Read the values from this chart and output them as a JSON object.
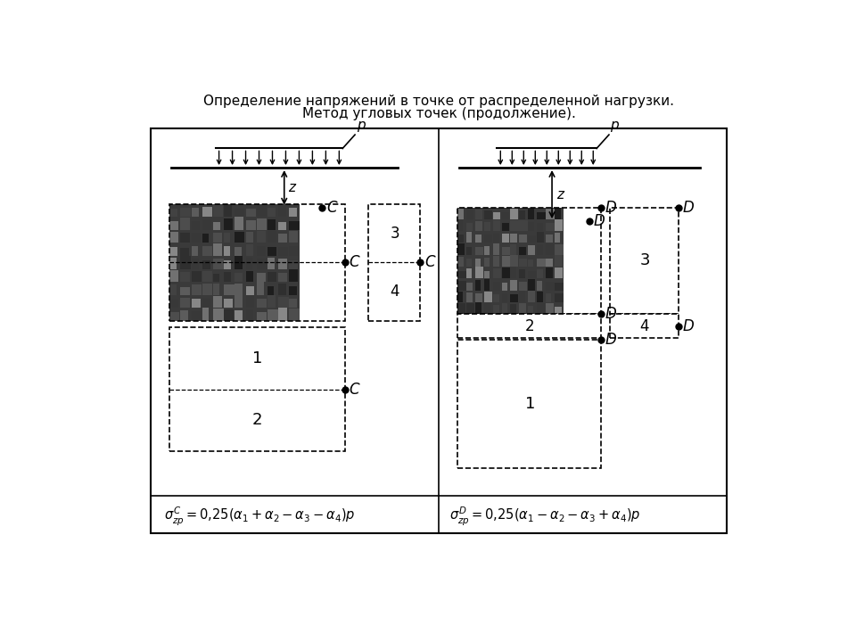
{
  "title_line1": "Определение напряжений в точке от распределенной нагрузки.",
  "title_line2": "Метод угловых точек (продолжение).",
  "formula_left": "$\\sigma^C_{zp} = 0{,}25(\\alpha_1 + \\alpha_2 - \\alpha_3 - \\alpha_4)p$",
  "formula_right": "$\\sigma^D_{zp} = 0{,}25(\\alpha_1 - \\alpha_2 - \\alpha_3 + \\alpha_4)p$",
  "bg_color": "#ffffff"
}
